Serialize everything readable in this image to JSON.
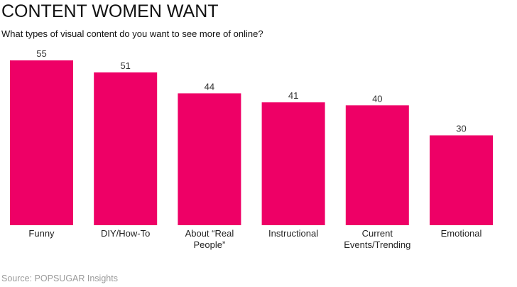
{
  "title": "CONTENT WOMEN WANT",
  "subtitle": "What types of visual content do you want to see more of online?",
  "source": "Source: POPSUGAR Insights",
  "chart_data": {
    "type": "bar",
    "title": "CONTENT WOMEN WANT",
    "subtitle": "What types of visual content do you want to see more of online?",
    "categories": [
      "Funny",
      "DIY/How-To",
      "About “Real People”",
      "Instructional",
      "Current Events/Trending",
      "Emotional"
    ],
    "category_lines": [
      [
        "Funny"
      ],
      [
        "DIY/How-To"
      ],
      [
        "About “Real",
        "People”"
      ],
      [
        "Instructional"
      ],
      [
        "Current",
        "Events/Trending"
      ],
      [
        "Emotional"
      ]
    ],
    "values": [
      55,
      51,
      44,
      41,
      40,
      30
    ],
    "ylim": [
      0,
      55
    ],
    "grid": false,
    "legend": "none",
    "bar_color": "#ee0066",
    "data_labels": true
  }
}
